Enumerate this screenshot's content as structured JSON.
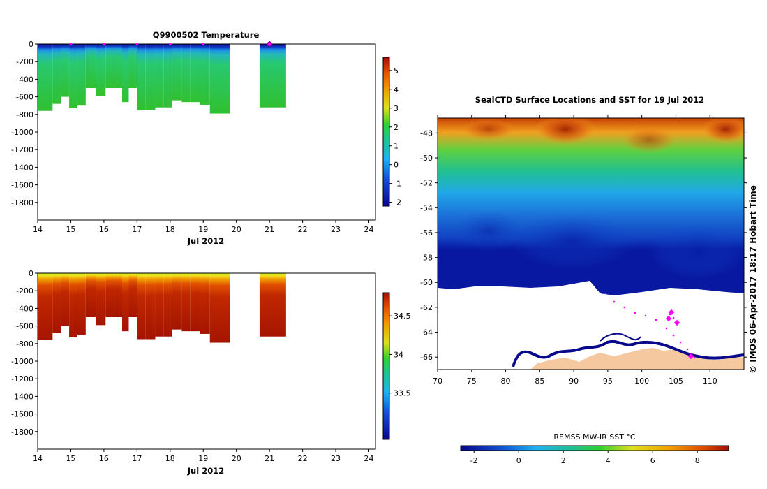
{
  "chart_data": [
    {
      "type": "heatmap",
      "title": "Q9900502  Temperature",
      "xlabel": "Jul 2012",
      "x_ticks": [
        "14",
        "15",
        "16",
        "17",
        "18",
        "19",
        "20",
        "21",
        "22",
        "23",
        "24"
      ],
      "xlim": [
        14,
        24.2
      ],
      "y_ticks": [
        "0",
        "-200",
        "-400",
        "-600",
        "-800",
        "-1000",
        "-1200",
        "-1400",
        "-1600",
        "-1800"
      ],
      "ylim": [
        -2000,
        0
      ],
      "colorbar_ticks": [
        "5",
        "4",
        "3",
        "2",
        "1",
        "0",
        "-1",
        "-2"
      ],
      "colorbar_range": [
        -2.2,
        5.7
      ],
      "profile_markers_days": [
        15,
        16,
        17,
        18,
        19
      ],
      "highlight_marker_day": 21,
      "profiles": [
        {
          "start": 14.0,
          "end": 14.45,
          "bottom": -760
        },
        {
          "start": 14.45,
          "end": 14.7,
          "bottom": -680
        },
        {
          "start": 14.7,
          "end": 14.95,
          "bottom": -600
        },
        {
          "start": 14.95,
          "end": 15.2,
          "bottom": -730
        },
        {
          "start": 15.2,
          "end": 15.45,
          "bottom": -700
        },
        {
          "start": 15.45,
          "end": 15.75,
          "bottom": -500
        },
        {
          "start": 15.75,
          "end": 16.05,
          "bottom": -590
        },
        {
          "start": 16.05,
          "end": 16.3,
          "bottom": -500
        },
        {
          "start": 16.3,
          "end": 16.55,
          "bottom": -500
        },
        {
          "start": 16.55,
          "end": 16.75,
          "bottom": -660
        },
        {
          "start": 16.75,
          "end": 17.0,
          "bottom": -500
        },
        {
          "start": 17.0,
          "end": 17.25,
          "bottom": -750
        },
        {
          "start": 17.25,
          "end": 17.55,
          "bottom": -750
        },
        {
          "start": 17.55,
          "end": 17.8,
          "bottom": -720
        },
        {
          "start": 17.8,
          "end": 18.05,
          "bottom": -720
        },
        {
          "start": 18.05,
          "end": 18.35,
          "bottom": -640
        },
        {
          "start": 18.35,
          "end": 18.6,
          "bottom": -660
        },
        {
          "start": 18.6,
          "end": 18.9,
          "bottom": -660
        },
        {
          "start": 18.9,
          "end": 19.2,
          "bottom": -690
        },
        {
          "start": 19.2,
          "end": 19.8,
          "bottom": -790
        },
        {
          "start": 20.7,
          "end": 21.5,
          "bottom": -720
        }
      ]
    },
    {
      "type": "heatmap",
      "title": "",
      "xlabel": "Jul 2012",
      "x_ticks": [
        "14",
        "15",
        "16",
        "17",
        "18",
        "19",
        "20",
        "21",
        "22",
        "23",
        "24"
      ],
      "xlim": [
        14,
        24.2
      ],
      "y_ticks": [
        "0",
        "-200",
        "-400",
        "-600",
        "-800",
        "-1000",
        "-1200",
        "-1400",
        "-1600",
        "-1800"
      ],
      "ylim": [
        -2000,
        0
      ],
      "colorbar_ticks": [
        "34.5",
        "34",
        "33.5"
      ],
      "colorbar_range": [
        32.9,
        34.8
      ],
      "profiles_same_as_first": true
    },
    {
      "type": "heatmap",
      "title": "SealCTD Surface Locations and SST for 19 Jul 2012",
      "x_ticks": [
        "70",
        "75",
        "80",
        "85",
        "90",
        "95",
        "100",
        "105",
        "110"
      ],
      "xlim": [
        70,
        115
      ],
      "y_ticks": [
        "-48",
        "-50",
        "-52",
        "-54",
        "-56",
        "-58",
        "-60",
        "-62",
        "-64",
        "-66"
      ],
      "ylim": [
        -67,
        -46.8
      ],
      "colorbar_label": "REMSS MW-IR SST °C",
      "colorbar_ticks": [
        "-2",
        "0",
        "2",
        "4",
        "6",
        "8"
      ],
      "colorbar_range": [
        -2.6,
        9.4
      ],
      "side_label": "© IMOS 06-Apr-2017 18:17 Hobart Time"
    }
  ],
  "colors": {
    "ocean_warm": "#a52a00",
    "ocean_cold": "#0a2aa0",
    "land": "#f5c8a0",
    "track": "#ff00ff"
  }
}
